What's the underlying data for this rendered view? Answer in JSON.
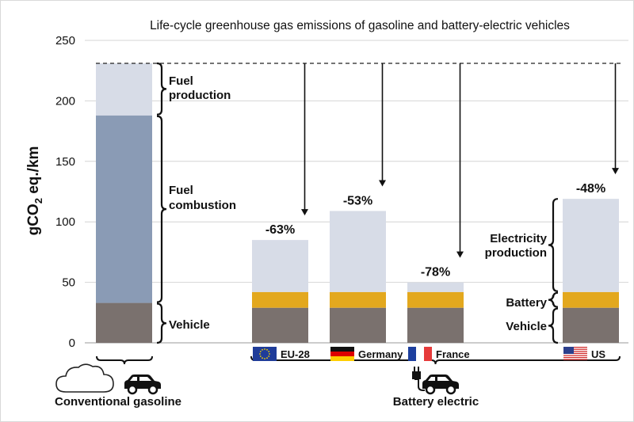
{
  "chart_data": {
    "type": "bar",
    "title": "Life-cycle greenhouse gas emissions of gasoline and battery-electric vehicles",
    "ylabel": {
      "main": "gCO",
      "sub": "2",
      "rest": " eq./km"
    },
    "ylim": [
      0,
      250
    ],
    "yticks": [
      0,
      50,
      100,
      150,
      200,
      250
    ],
    "grid": true,
    "colors": {
      "vehicle": "#7a716e",
      "battery": "#e3a81e",
      "fuel_combustion": "#8a9bb5",
      "fuel_production": "#d7dce7",
      "electricity_production": "#d7dce7"
    },
    "gasoline": {
      "components": [
        {
          "label": "Vehicle",
          "value": 33
        },
        {
          "label": "Fuel combustion",
          "value": 155
        },
        {
          "label": "Fuel production",
          "value": 43
        }
      ],
      "total": 231
    },
    "ev_components": [
      "Vehicle",
      "Battery",
      "Electricity production"
    ],
    "evs": [
      {
        "name": "EU-28",
        "flag": "eu-flag-icon",
        "vehicle": 29,
        "battery": 13,
        "electricity": 43,
        "total": 85,
        "reduction": "-63%"
      },
      {
        "name": "Germany",
        "flag": "germany-flag-icon",
        "vehicle": 29,
        "battery": 13,
        "electricity": 67,
        "total": 109,
        "reduction": "-53%"
      },
      {
        "name": "France",
        "flag": "france-flag-icon",
        "vehicle": 29,
        "battery": 13,
        "electricity": 8,
        "total": 50,
        "reduction": "-78%"
      },
      {
        "name": "US",
        "flag": "us-flag-icon",
        "vehicle": 29,
        "battery": 13,
        "electricity": 77,
        "total": 119,
        "reduction": "-48%"
      }
    ],
    "bracket_labels": {
      "fuel_production": [
        "Fuel",
        "production"
      ],
      "fuel_combustion": [
        "Fuel",
        "combustion"
      ],
      "vehicle_left": "Vehicle",
      "electricity_production": [
        "Electricity",
        "production"
      ],
      "battery": "Battery",
      "vehicle_right": "Vehicle"
    },
    "group_labels": {
      "gasoline": "Conventional gasoline",
      "electric": "Battery electric"
    },
    "icons": {
      "gasoline": [
        "cloud-icon",
        "car-icon"
      ],
      "electric": [
        "plug-icon",
        "car-icon"
      ]
    }
  }
}
